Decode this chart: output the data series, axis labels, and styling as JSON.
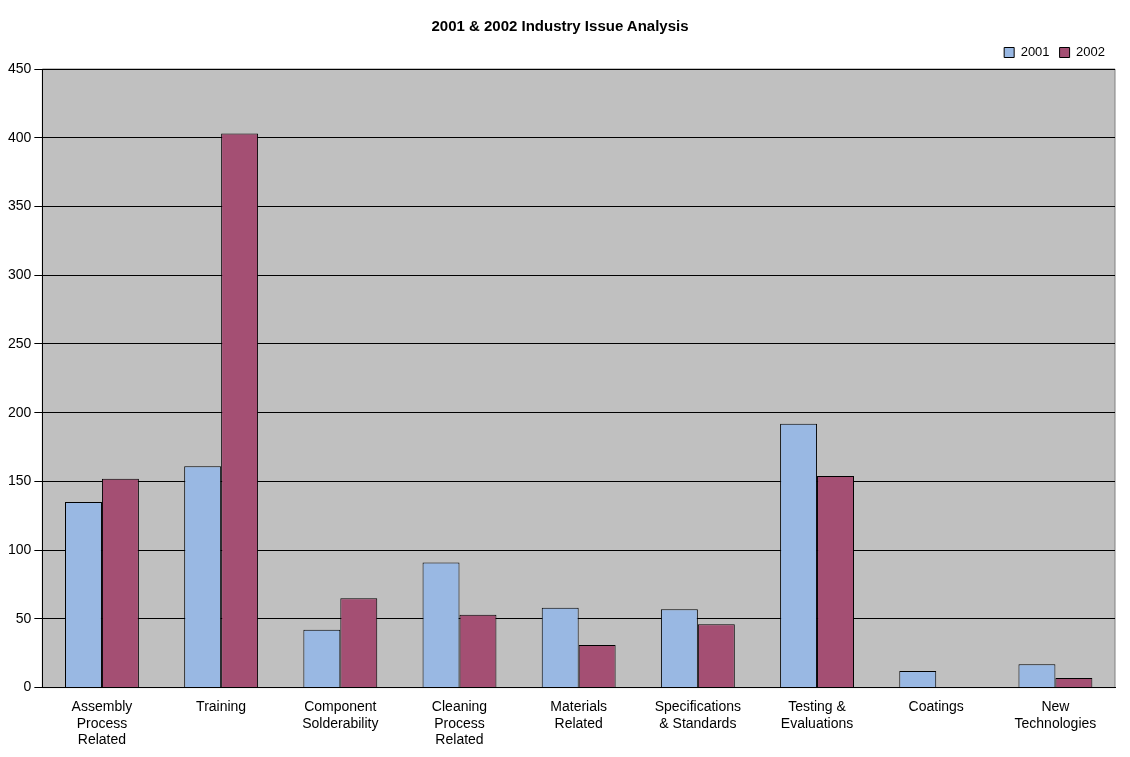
{
  "chart_data": {
    "type": "bar",
    "title": "2001 & 2002 Industry Issue Analysis",
    "categories": [
      "Assembly Process Related",
      "Training",
      "Component Solderability",
      "Cleaning Process Related",
      "Materials Related",
      "Specifications & Standards",
      "Testing & Evaluations",
      "Coatings",
      "New Technologies"
    ],
    "series": [
      {
        "name": "2001",
        "color": "#99b8e3",
        "values": [
          135,
          161,
          42,
          91,
          58,
          57,
          192,
          12,
          17
        ]
      },
      {
        "name": "2002",
        "color": "#a44f73",
        "values": [
          152,
          403,
          65,
          53,
          31,
          46,
          154,
          0,
          7
        ]
      }
    ],
    "ylim": [
      0,
      450
    ],
    "yticks": [
      0,
      50,
      100,
      150,
      200,
      250,
      300,
      350,
      400,
      450
    ],
    "grid": "y",
    "legend": "top right"
  }
}
